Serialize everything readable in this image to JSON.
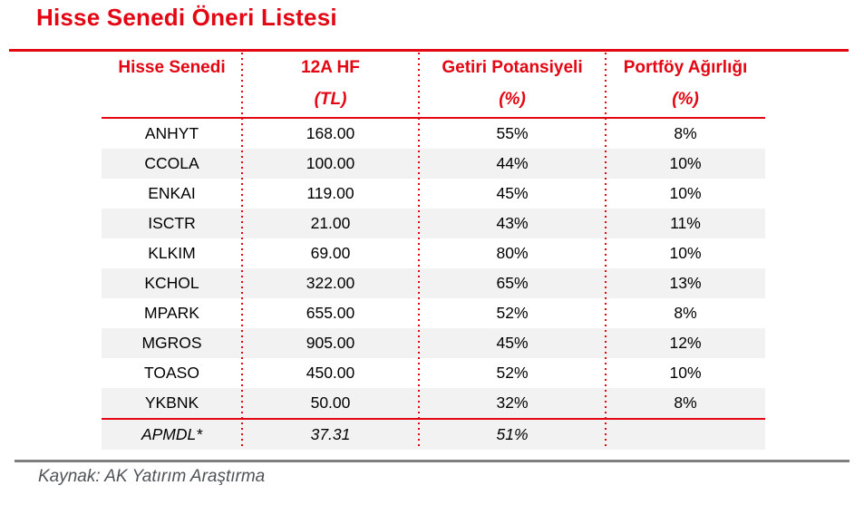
{
  "title": "Hisse Senedi Öneri Listesi",
  "source_note": "Kaynak: AK Yatırım Araştırma",
  "colors": {
    "accent_red": "#E30613",
    "row_band_gray": "#F2F2F2",
    "bottom_rule_gray": "#7F7F7F",
    "source_text_gray": "#4F5358"
  },
  "table": {
    "columns": [
      {
        "key": "ticker",
        "label": "Hisse Senedi",
        "unit": ""
      },
      {
        "key": "target_price",
        "label": "12A HF",
        "unit": "(TL)"
      },
      {
        "key": "return_potential",
        "label": "Getiri Potansiyeli",
        "unit": "(%)"
      },
      {
        "key": "weight",
        "label": "Portföy Ağırlığı",
        "unit": "(%)"
      }
    ],
    "rows": [
      {
        "ticker": "ANHYT",
        "target_price": "168.00",
        "return_potential": "55%",
        "weight": "8%"
      },
      {
        "ticker": "CCOLA",
        "target_price": "100.00",
        "return_potential": "44%",
        "weight": "10%"
      },
      {
        "ticker": "ENKAI",
        "target_price": "119.00",
        "return_potential": "45%",
        "weight": "10%"
      },
      {
        "ticker": "ISCTR",
        "target_price": "21.00",
        "return_potential": "43%",
        "weight": "11%"
      },
      {
        "ticker": "KLKIM",
        "target_price": "69.00",
        "return_potential": "80%",
        "weight": "10%"
      },
      {
        "ticker": "KCHOL",
        "target_price": "322.00",
        "return_potential": "65%",
        "weight": "13%"
      },
      {
        "ticker": "MPARK",
        "target_price": "655.00",
        "return_potential": "52%",
        "weight": "8%"
      },
      {
        "ticker": "MGROS",
        "target_price": "905.00",
        "return_potential": "45%",
        "weight": "12%"
      },
      {
        "ticker": "TOASO",
        "target_price": "450.00",
        "return_potential": "52%",
        "weight": "10%"
      },
      {
        "ticker": "YKBNK",
        "target_price": "50.00",
        "return_potential": "32%",
        "weight": "8%"
      }
    ],
    "summary_row": {
      "ticker": "APMDL*",
      "target_price": "37.31",
      "return_potential": "51%",
      "weight": ""
    }
  }
}
